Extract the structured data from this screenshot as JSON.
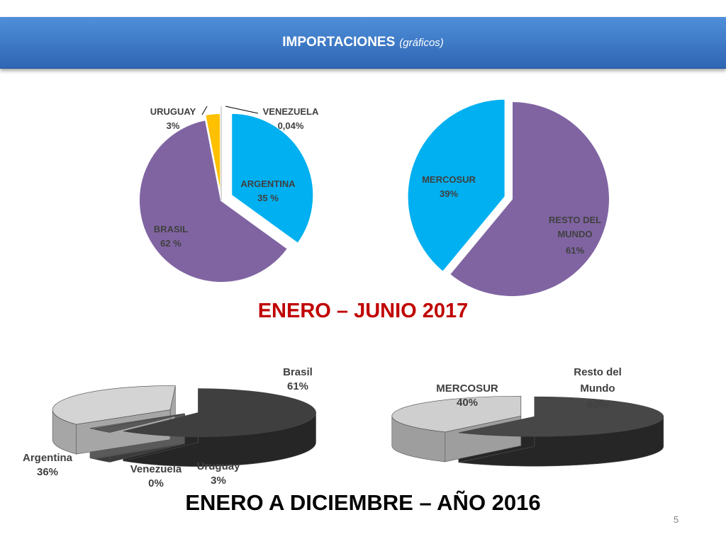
{
  "header": {
    "title": "IMPORTACIONES",
    "subtitle": "(gráficos)"
  },
  "sections": {
    "period_2017": "ENERO – JUNIO 2017",
    "period_2016": "ENERO A DICIEMBRE – AÑO 2016"
  },
  "page_number": "5",
  "colors": {
    "header": "#3a75c4",
    "argentina": "#00b0f0",
    "brasil": "#8064a2",
    "uruguay": "#ffc000",
    "venezuela": "#ffffff",
    "title_2017": "#c00000"
  },
  "chart_data": [
    {
      "type": "pie",
      "categories": [
        "ARGENTINA",
        "BRASIL",
        "URUGUAY",
        "VENEZUELA"
      ],
      "values": [
        35,
        62,
        3,
        0.04
      ],
      "labels": [
        {
          "name": "ARGENTINA",
          "value": "35 %"
        },
        {
          "name": "BRASIL",
          "value": "62 %"
        },
        {
          "name": "URUGUAY",
          "value": "3%"
        },
        {
          "name": "VENEZUELA",
          "value": "0,04%"
        }
      ]
    },
    {
      "type": "pie",
      "categories": [
        "MERCOSUR",
        "RESTO DEL MUNDO"
      ],
      "values": [
        39,
        61
      ],
      "labels": [
        {
          "name": "MERCOSUR",
          "value": "39%"
        },
        {
          "name": "RESTO DEL MUNDO",
          "value": "61%"
        }
      ]
    },
    {
      "type": "pie",
      "categories": [
        "Brasil",
        "Argentina",
        "Venezuela",
        "Uruguay"
      ],
      "values": [
        61,
        36,
        0,
        3
      ],
      "labels": [
        {
          "name": "Brasil",
          "value": "61%"
        },
        {
          "name": "Argentina",
          "value": "36%"
        },
        {
          "name": "Venezuela",
          "value": "0%"
        },
        {
          "name": "Uruguay",
          "value": "3%"
        }
      ]
    },
    {
      "type": "pie",
      "categories": [
        "MERCOSUR",
        "Resto del Mundo"
      ],
      "values": [
        40,
        60
      ],
      "labels": [
        {
          "name": "MERCOSUR",
          "value": "40%"
        },
        {
          "name": "Resto del Mundo",
          "value": "60%"
        }
      ]
    }
  ]
}
